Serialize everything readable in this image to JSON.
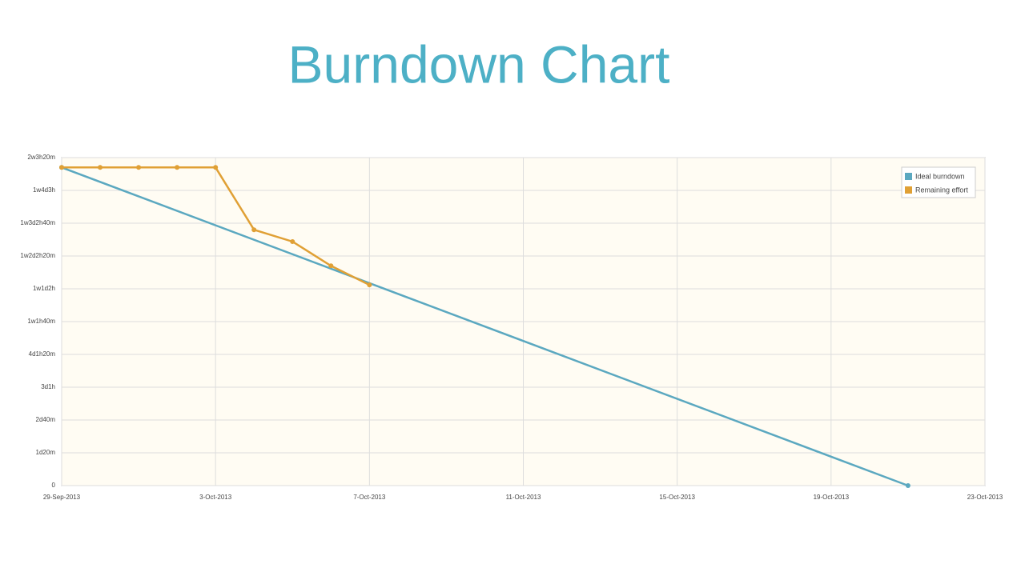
{
  "chart_data": {
    "type": "line",
    "title": "Burndown Chart",
    "xlim": [
      "2013-09-29",
      "2013-10-23"
    ],
    "xticks": [
      {
        "value": "2013-09-29",
        "label": "29-Sep-2013"
      },
      {
        "value": "2013-10-03",
        "label": "3-Oct-2013"
      },
      {
        "value": "2013-10-07",
        "label": "7-Oct-2013"
      },
      {
        "value": "2013-10-11",
        "label": "11-Oct-2013"
      },
      {
        "value": "2013-10-15",
        "label": "15-Oct-2013"
      },
      {
        "value": "2013-10-19",
        "label": "19-Oct-2013"
      },
      {
        "value": "2013-10-23",
        "label": "23-Oct-2013"
      }
    ],
    "ylim": [
      0,
      5000
    ],
    "yticks": [
      0,
      {
        "value": 500,
        "label": "1d20m"
      },
      {
        "value": 1000,
        "label": "2d40m"
      },
      {
        "value": 1500,
        "label": "3d1h"
      },
      {
        "value": 2000,
        "label": "4d1h20m"
      },
      {
        "value": 2500,
        "label": "1w1h40m"
      },
      {
        "value": 3000,
        "label": "1w1d2h"
      },
      {
        "value": 3500,
        "label": "1w2d2h20m"
      },
      {
        "value": 4000,
        "label": "1w3d2h40m"
      },
      {
        "value": 4500,
        "label": "1w4d3h"
      },
      {
        "value": 5000,
        "label": "2w3h20m"
      }
    ],
    "grid": true,
    "legend": "top-right",
    "series": [
      {
        "name": "Ideal burndown",
        "color": "#5ba8c0",
        "x": [
          "2013-09-29",
          "2013-10-21"
        ],
        "values": [
          4850,
          0
        ]
      },
      {
        "name": "Remaining effort",
        "color": "#e0a035",
        "x": [
          "2013-09-29",
          "2013-09-30",
          "2013-10-01",
          "2013-10-02",
          "2013-10-03",
          "2013-10-04",
          "2013-10-05",
          "2013-10-06",
          "2013-10-07"
        ],
        "values": [
          4850,
          4850,
          4850,
          4850,
          4850,
          3900,
          3720,
          3350,
          3060
        ]
      }
    ]
  }
}
